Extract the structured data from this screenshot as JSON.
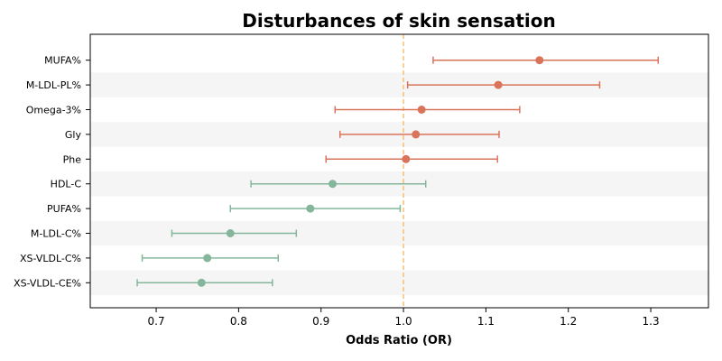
{
  "chart_data": {
    "type": "forest",
    "title": "Disturbances of skin sensation",
    "xlabel": "Odds Ratio (OR)",
    "ylabel": "",
    "xlim": [
      0.62,
      1.37
    ],
    "xticks": [
      0.7,
      0.8,
      0.9,
      1.0,
      1.1,
      1.2,
      1.3
    ],
    "xtick_labels": [
      "0.7",
      "0.8",
      "0.9",
      "1.0",
      "1.1",
      "1.2",
      "1.3"
    ],
    "reference_line": 1.0,
    "grid": false,
    "colors": {
      "risk": "#d9745a",
      "protective": "#85b69c",
      "reference": "#f5c07a",
      "band": "#f5f5f5"
    },
    "items": [
      {
        "label": "MUFA%",
        "or": 1.165,
        "lower": 1.036,
        "upper": 1.309,
        "group": "risk"
      },
      {
        "label": "M-LDL-PL%",
        "or": 1.115,
        "lower": 1.005,
        "upper": 1.238,
        "group": "risk"
      },
      {
        "label": "Omega-3%",
        "or": 1.022,
        "lower": 0.917,
        "upper": 1.141,
        "group": "risk"
      },
      {
        "label": "Gly",
        "or": 1.015,
        "lower": 0.923,
        "upper": 1.116,
        "group": "risk"
      },
      {
        "label": "Phe",
        "or": 1.003,
        "lower": 0.906,
        "upper": 1.114,
        "group": "risk"
      },
      {
        "label": "HDL-C",
        "or": 0.914,
        "lower": 0.815,
        "upper": 1.027,
        "group": "protective"
      },
      {
        "label": "PUFA%",
        "or": 0.887,
        "lower": 0.79,
        "upper": 0.996,
        "group": "protective"
      },
      {
        "label": "M-LDL-C%",
        "or": 0.79,
        "lower": 0.719,
        "upper": 0.87,
        "group": "protective"
      },
      {
        "label": "XS-VLDL-C%",
        "or": 0.762,
        "lower": 0.683,
        "upper": 0.848,
        "group": "protective"
      },
      {
        "label": "XS-VLDL-CE%",
        "or": 0.755,
        "lower": 0.677,
        "upper": 0.841,
        "group": "protective"
      }
    ]
  }
}
